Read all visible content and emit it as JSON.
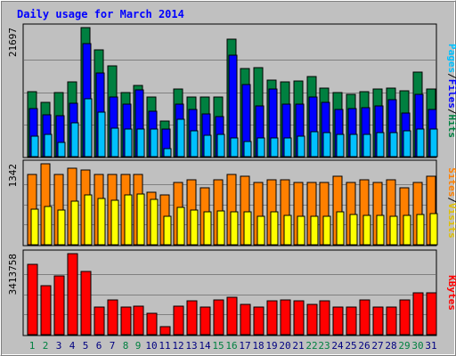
{
  "chart_data": {
    "type": "bar",
    "title": "Daily usage for March 2014",
    "categories": [
      "1",
      "2",
      "3",
      "4",
      "5",
      "6",
      "7",
      "8",
      "9",
      "10",
      "11",
      "12",
      "13",
      "14",
      "15",
      "16",
      "17",
      "18",
      "19",
      "20",
      "21",
      "22",
      "23",
      "24",
      "25",
      "26",
      "27",
      "28",
      "29",
      "30",
      "31"
    ],
    "weekend_days": [
      "1",
      "2",
      "8",
      "9",
      "15",
      "16",
      "22",
      "23",
      "29",
      "30"
    ],
    "grid": true,
    "colors": {
      "background": "#c0c0c0",
      "title": "#0000ff",
      "weekday_label": "#000080",
      "weekend_label": "#008040",
      "hits": "#008040",
      "files": "#0000ff",
      "pages": "#00c0ff",
      "visits": "#ff8000",
      "sites": "#ffff00",
      "kbytes": "#ff0000"
    },
    "panels": [
      {
        "id": "hits-files-pages",
        "ymax_label": "21697",
        "ylim": [
          0,
          21697
        ],
        "side_labels": [
          {
            "text": "Pages",
            "color": "#00c0ff"
          },
          {
            "text": "/",
            "color": "#000000"
          },
          {
            "text": "Files",
            "color": "#0000ff"
          },
          {
            "text": "/",
            "color": "#000000"
          },
          {
            "text": "Hits",
            "color": "#008040"
          }
        ],
        "series": [
          {
            "name": "Hits",
            "color": "#008040",
            "values": [
              10900,
              9200,
              10700,
              12600,
              21697,
              17900,
              15200,
              10700,
              11900,
              10000,
              6000,
              11300,
              10000,
              10000,
              10000,
              19800,
              14800,
              15000,
              12800,
              12600,
              12700,
              13400,
              11500,
              10700,
              10400,
              10900,
              11400,
              11500,
              11000,
              14200,
              11400
            ]
          },
          {
            "name": "Files",
            "color": "#0000ff",
            "values": [
              8100,
              7100,
              6900,
              9000,
              19000,
              14100,
              10100,
              8800,
              11200,
              7700,
              4700,
              8800,
              7900,
              7200,
              6800,
              17000,
              12100,
              8600,
              11300,
              8900,
              8900,
              10100,
              9100,
              7900,
              8100,
              8200,
              8600,
              9600,
              7300,
              10400,
              8000
            ]
          },
          {
            "name": "Pages",
            "color": "#00c0ff",
            "values": [
              3400,
              3700,
              2400,
              5700,
              9700,
              7500,
              4800,
              4600,
              4600,
              4600,
              1400,
              6300,
              4300,
              3600,
              3800,
              3200,
              2600,
              3200,
              3200,
              3200,
              3500,
              4200,
              4000,
              3800,
              3800,
              3700,
              4000,
              4000,
              4400,
              4600,
              4600
            ]
          }
        ]
      },
      {
        "id": "visits-sites",
        "ymax_label": "1342",
        "ylim": [
          0,
          1342
        ],
        "side_labels": [
          {
            "text": "Sites",
            "color": "#ff8000"
          },
          {
            "text": "/",
            "color": "#000000"
          },
          {
            "text": "Visits",
            "color": "#e0c000"
          }
        ],
        "series": [
          {
            "name": "Visits",
            "color": "#ff8000",
            "values": [
              1160,
              1342,
              1160,
              1272,
              1237,
              1172,
              1160,
              1160,
              1160,
              876,
              830,
              1034,
              1080,
              946,
              1070,
              1160,
              1137,
              1034,
              1080,
              1080,
              1034,
              1034,
              1034,
              1137,
              1034,
              1080,
              1034,
              1080,
              946,
              1034,
              1137
            ]
          },
          {
            "name": "Sites",
            "color": "#ffff00",
            "values": [
              585,
              640,
              574,
              718,
              830,
              764,
              730,
              820,
              840,
              752,
              470,
              618,
              570,
              550,
              560,
              540,
              550,
              475,
              540,
              490,
              470,
              470,
              470,
              540,
              500,
              490,
              480,
              470,
              480,
              500,
              520
            ]
          }
        ]
      },
      {
        "id": "kbytes",
        "ymax_label": "3413758",
        "ylim": [
          0,
          3413758
        ],
        "side_labels": [
          {
            "text": "KBytes",
            "color": "#ff0000"
          }
        ],
        "series": [
          {
            "name": "KBytes",
            "color": "#ff0000",
            "values": [
              2970000,
              2050000,
              2480000,
              3413758,
              2660000,
              1150000,
              1470000,
              1150000,
              1190000,
              890000,
              320000,
              1190000,
              1410000,
              1180000,
              1470000,
              1590000,
              1290000,
              1180000,
              1410000,
              1470000,
              1410000,
              1290000,
              1410000,
              1180000,
              1180000,
              1470000,
              1180000,
              1180000,
              1470000,
              1750000,
              1750000
            ]
          }
        ]
      }
    ]
  }
}
